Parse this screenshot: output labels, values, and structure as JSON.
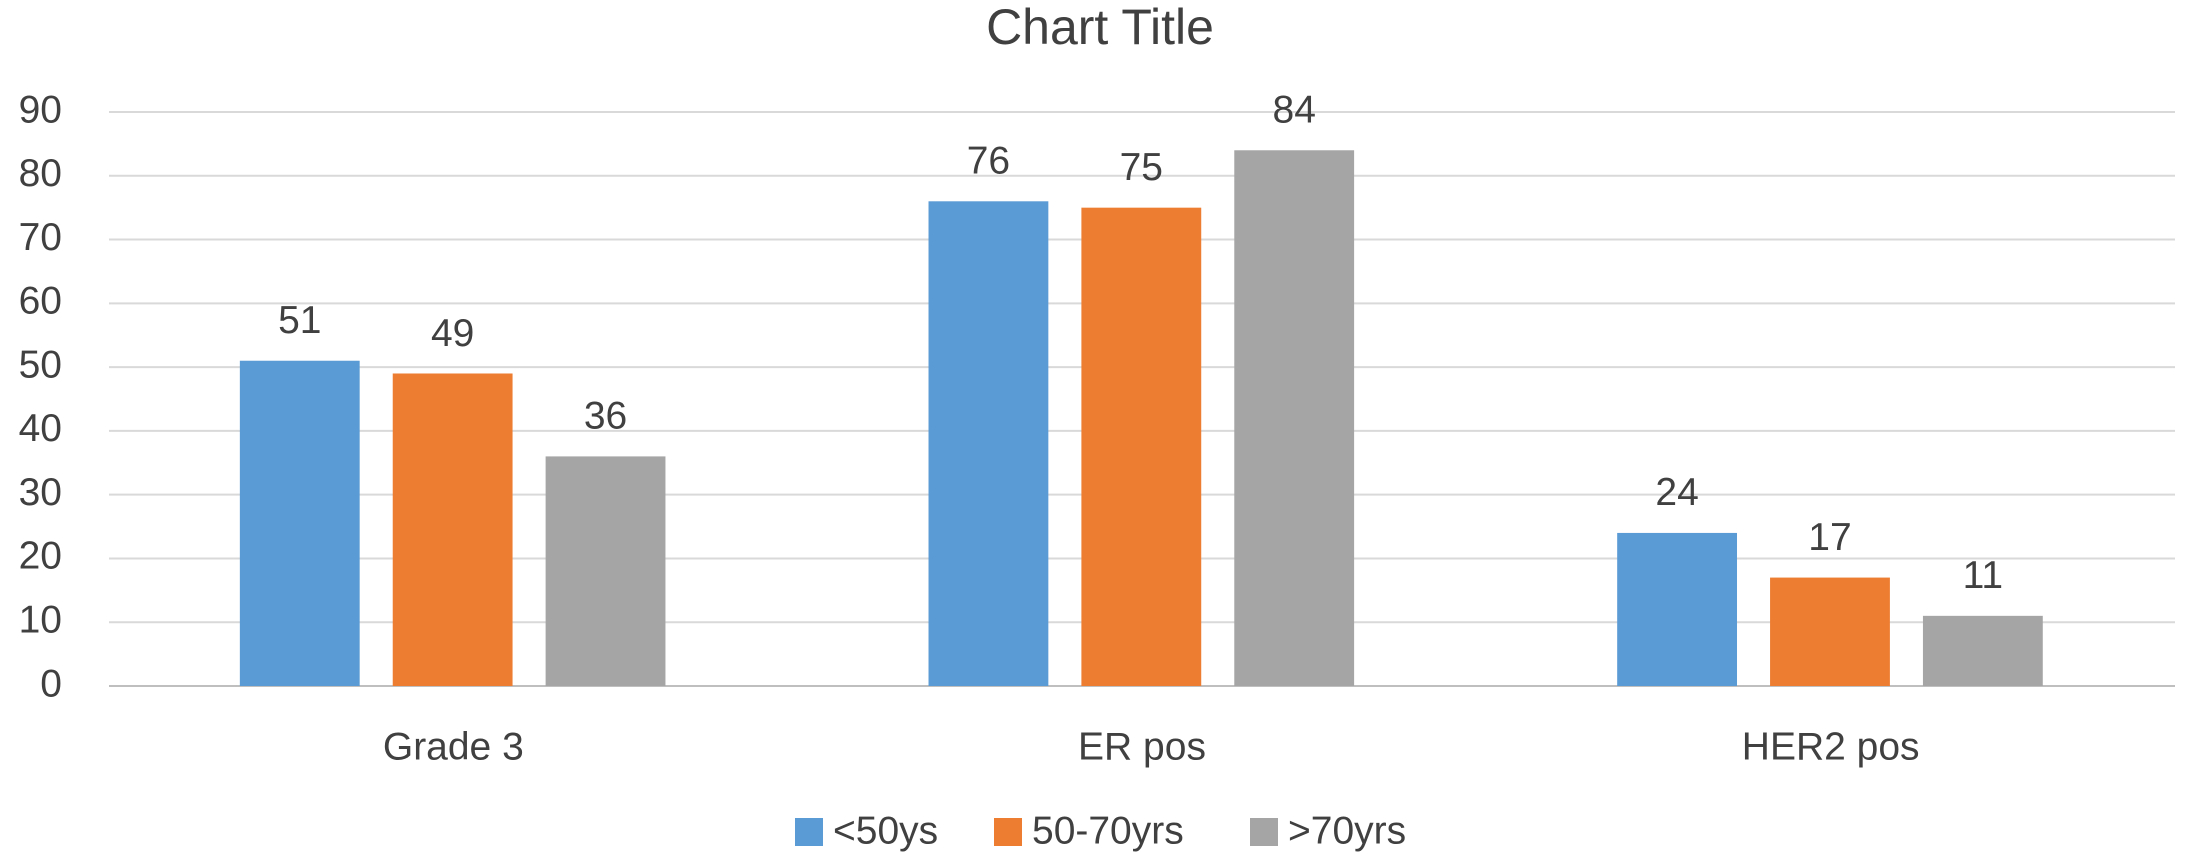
{
  "chart_data": {
    "type": "bar",
    "title": "Chart Title",
    "categories": [
      "Grade 3",
      "ER pos",
      "HER2 pos"
    ],
    "series": [
      {
        "name": "<50ys",
        "color": "#5b9bd5",
        "values": [
          51,
          76,
          24
        ]
      },
      {
        "name": "50-70yrs",
        "color": "#ed7d31",
        "values": [
          49,
          75,
          17
        ]
      },
      {
        "name": ">70yrs",
        "color": "#a5a5a5",
        "values": [
          36,
          84,
          11
        ]
      }
    ],
    "ylim": [
      0,
      90
    ],
    "yticks": [
      0,
      10,
      20,
      30,
      40,
      50,
      60,
      70,
      80,
      90
    ],
    "grid": true,
    "legend": "bottom"
  }
}
